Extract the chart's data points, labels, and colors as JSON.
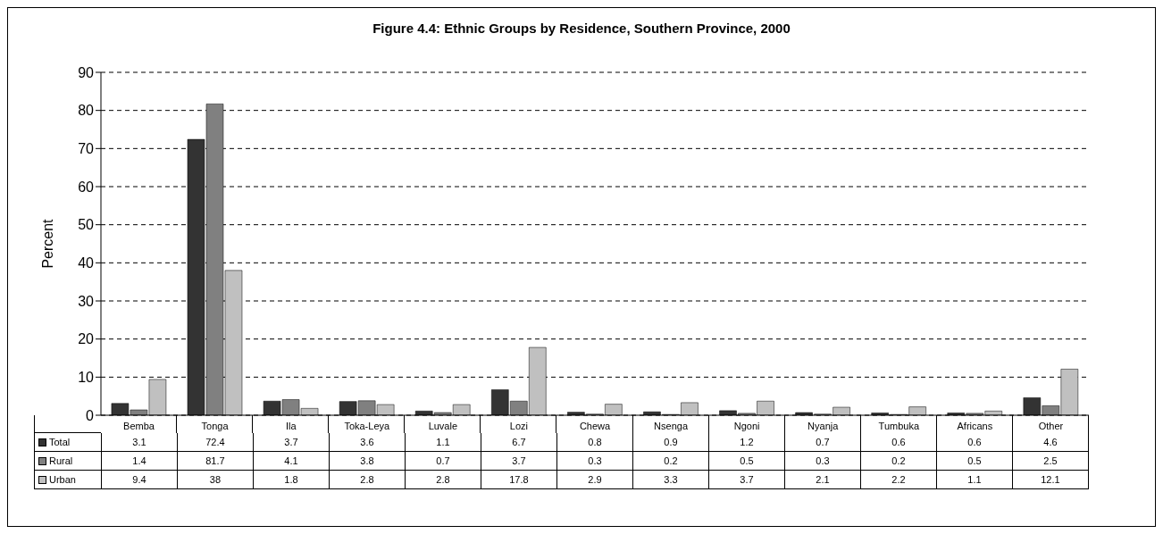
{
  "chart_data": {
    "type": "bar",
    "title": "Figure 4.4: Ethnic Groups by Residence, Southern Province, 2000",
    "ylabel": "Percent",
    "categories": [
      "Bemba",
      "Tonga",
      "Ila",
      "Toka-Leya",
      "Luvale",
      "Lozi",
      "Chewa",
      "Nsenga",
      "Ngoni",
      "Nyanja",
      "Tumbuka",
      "Africans",
      "Other"
    ],
    "series": [
      {
        "name": "Total",
        "color": "#333333",
        "values": [
          3.1,
          72.4,
          3.7,
          3.6,
          1.1,
          6.7,
          0.8,
          0.9,
          1.2,
          0.7,
          0.6,
          0.6,
          4.6
        ]
      },
      {
        "name": "Rural",
        "color": "#808080",
        "values": [
          1.4,
          81.7,
          4.1,
          3.8,
          0.7,
          3.7,
          0.3,
          0.2,
          0.5,
          0.3,
          0.2,
          0.5,
          2.5
        ]
      },
      {
        "name": "Urban",
        "color": "#c0c0c0",
        "values": [
          9.4,
          38,
          1.8,
          2.8,
          2.8,
          17.8,
          2.9,
          3.3,
          3.7,
          2.1,
          2.2,
          1.1,
          12.1
        ]
      }
    ],
    "ylim": [
      0,
      90
    ],
    "yticks": [
      0,
      10,
      20,
      30,
      40,
      50,
      60,
      70,
      80,
      90
    ],
    "grid": "y",
    "legend": "bottom",
    "data_labels": true
  }
}
